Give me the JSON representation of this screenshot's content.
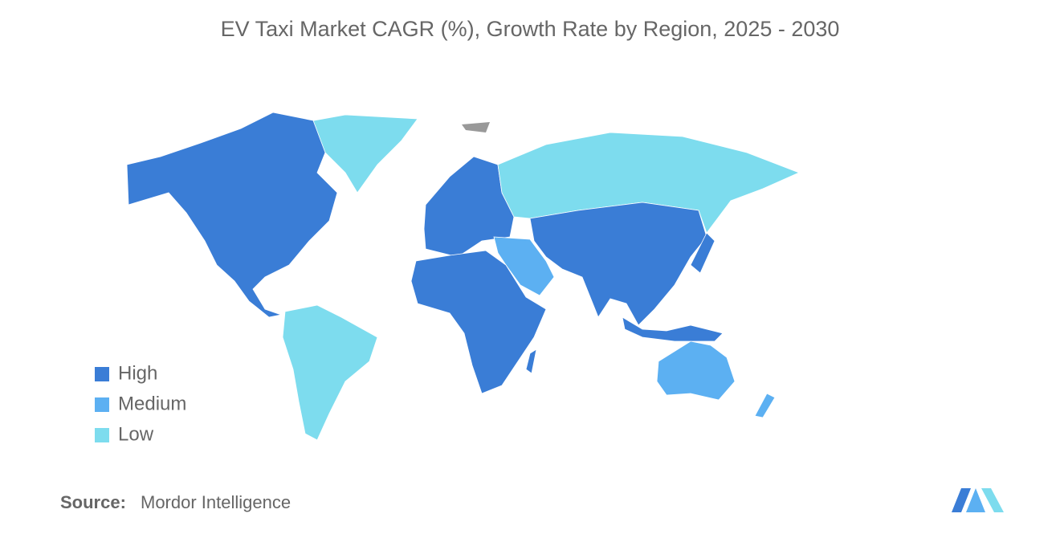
{
  "title": "EV Taxi Market CAGR (%), Growth Rate by Region, 2025 - 2030",
  "legend": [
    {
      "label": "High",
      "color": "#3a7dd6"
    },
    {
      "label": "Medium",
      "color": "#5cb0f2"
    },
    {
      "label": "Low",
      "color": "#7ddcee"
    }
  ],
  "source": {
    "label": "Source:",
    "text": "Mordor Intelligence"
  }
}
